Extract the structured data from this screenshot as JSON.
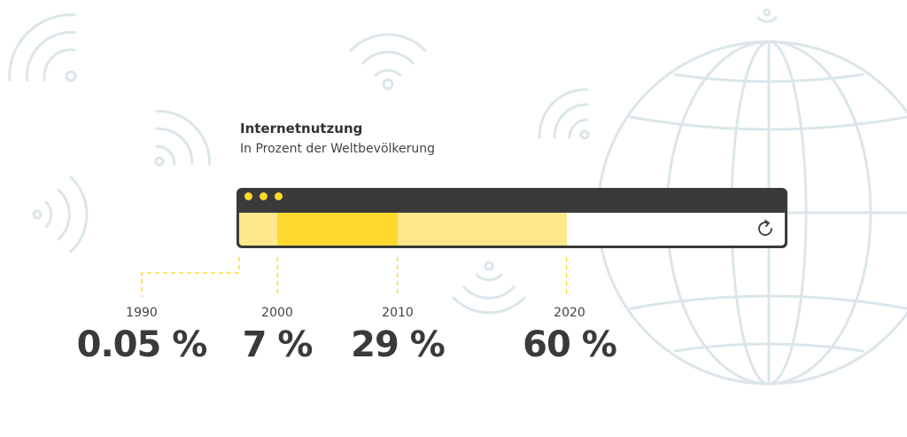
{
  "header": {
    "title": "Internetnutzung",
    "subtitle": "In Prozent der Weltbevölkerung"
  },
  "icons": {
    "background": [
      "wifi-icon",
      "globe-icon"
    ],
    "browser": [
      "window-dot-icon",
      "reload-icon"
    ]
  },
  "colors": {
    "bar_1990_2000": "#ffe88c",
    "bar_2000_2010": "#ffd92e",
    "bar_2010_2020": "#ffe88c",
    "browser_frame": "#3a3a3a",
    "background_icons": "#dbe6ea"
  },
  "chart_data": {
    "type": "bar",
    "title": "Internetnutzung",
    "subtitle": "In Prozent der Weltbevölkerung",
    "categories": [
      "1990",
      "2000",
      "2010",
      "2020"
    ],
    "values": [
      0.05,
      7,
      29,
      60
    ],
    "labels": [
      "0.05 %",
      "7 %",
      "29 %",
      "60 %"
    ],
    "ylim": [
      0,
      100
    ]
  }
}
